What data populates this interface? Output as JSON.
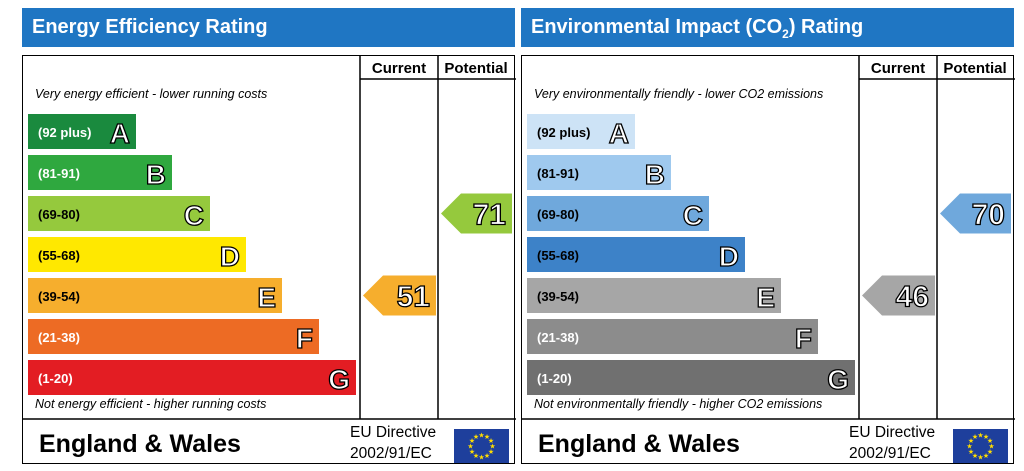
{
  "chart_data": [
    {
      "type": "bar",
      "title": "Energy Efficiency Rating",
      "columns": [
        "Current",
        "Potential"
      ],
      "top_note": "Very energy efficient - lower running costs",
      "bottom_note": "Not energy efficient - higher running costs",
      "categories": [
        "A",
        "B",
        "C",
        "D",
        "E",
        "F",
        "G"
      ],
      "ranges": [
        "(92 plus)",
        "(81-91)",
        "(69-80)",
        "(55-68)",
        "(39-54)",
        "(21-38)",
        "(1-20)"
      ],
      "colors": [
        "#1a8a3e",
        "#2fa83f",
        "#95c93d",
        "#ffe800",
        "#f6ae2d",
        "#ed6b24",
        "#e31d23"
      ],
      "current": {
        "value": 51,
        "band": "E",
        "color": "#f6ae2d"
      },
      "potential": {
        "value": 71,
        "band": "C",
        "color": "#95c93d"
      },
      "footer_region": "England & Wales",
      "footer_directive": [
        "EU Directive",
        "2002/91/EC"
      ]
    },
    {
      "type": "bar",
      "title": "Environmental Impact (CO",
      "title_sub": "2",
      "title_suffix": ") Rating",
      "columns": [
        "Current",
        "Potential"
      ],
      "top_note": "Very environmentally friendly - lower CO2 emissions",
      "bottom_note": "Not environmentally friendly - higher CO2 emissions",
      "categories": [
        "A",
        "B",
        "C",
        "D",
        "E",
        "F",
        "G"
      ],
      "ranges": [
        "(92 plus)",
        "(81-91)",
        "(69-80)",
        "(55-68)",
        "(39-54)",
        "(21-38)",
        "(1-20)"
      ],
      "colors": [
        "#cde3f6",
        "#9fc9ee",
        "#6fa8dc",
        "#3d82c8",
        "#a6a6a6",
        "#8c8c8c",
        "#707070"
      ],
      "current": {
        "value": 46,
        "band": "E",
        "color": "#a6a6a6"
      },
      "potential": {
        "value": 70,
        "band": "C",
        "color": "#6fa8dc"
      },
      "footer_region": "England & Wales",
      "footer_directive": [
        "EU Directive",
        "2002/91/EC"
      ]
    }
  ]
}
